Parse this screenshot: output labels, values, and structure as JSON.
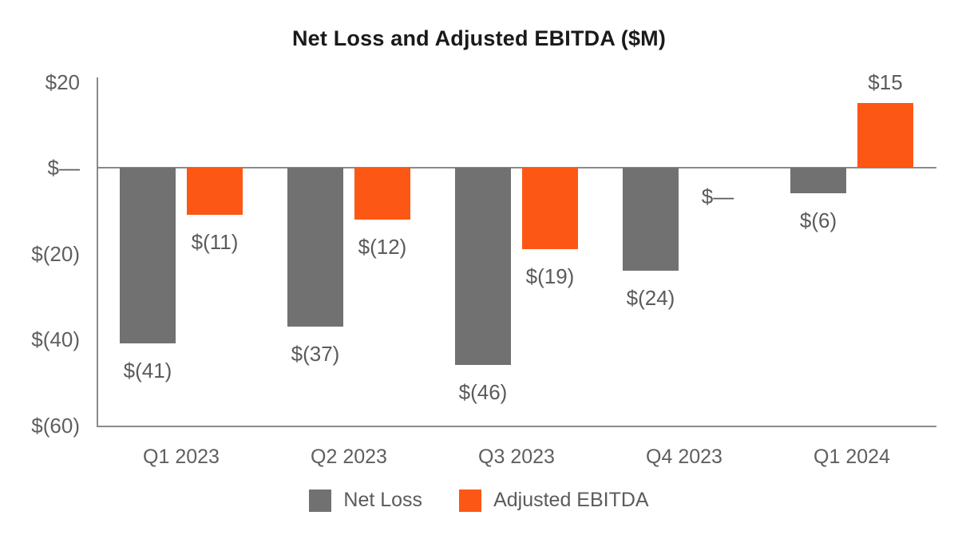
{
  "title": "Net Loss and Adjusted EBITDA ($M)",
  "colors": {
    "net_loss": "#717171",
    "adjusted_ebitda": "#FC5714",
    "axis_line": "#8a8a8a",
    "label_text": "#5b5b5b",
    "title_text": "#1a1a1a"
  },
  "chart_data": {
    "type": "bar",
    "title": "Net Loss and Adjusted EBITDA ($M)",
    "categories": [
      "Q1 2023",
      "Q2 2023",
      "Q3 2023",
      "Q4 2023",
      "Q1 2024"
    ],
    "series": [
      {
        "name": "Net Loss",
        "color": "#717171",
        "values": [
          -41,
          -37,
          -46,
          -24,
          -6
        ],
        "data_labels": [
          "$(41)",
          "$(37)",
          "$(46)",
          "$(24)",
          "$(6)"
        ]
      },
      {
        "name": "Adjusted EBITDA",
        "color": "#FC5714",
        "values": [
          -11,
          -12,
          -19,
          0,
          15
        ],
        "data_labels": [
          "$(11)",
          "$(12)",
          "$(19)",
          "$—",
          "$15"
        ]
      }
    ],
    "xlabel": "",
    "ylabel": "",
    "ylim": [
      -60,
      20
    ],
    "y_ticks": [
      {
        "value": 20,
        "label": "$20"
      },
      {
        "value": 0,
        "label": "$—"
      },
      {
        "value": -20,
        "label": "$(20)"
      },
      {
        "value": -40,
        "label": "$(40)"
      },
      {
        "value": -60,
        "label": "$(60)"
      }
    ],
    "grid": false,
    "legend_position": "bottom"
  },
  "legend": {
    "items": [
      {
        "label": "Net Loss",
        "color": "#717171"
      },
      {
        "label": "Adjusted EBITDA",
        "color": "#FC5714"
      }
    ]
  }
}
